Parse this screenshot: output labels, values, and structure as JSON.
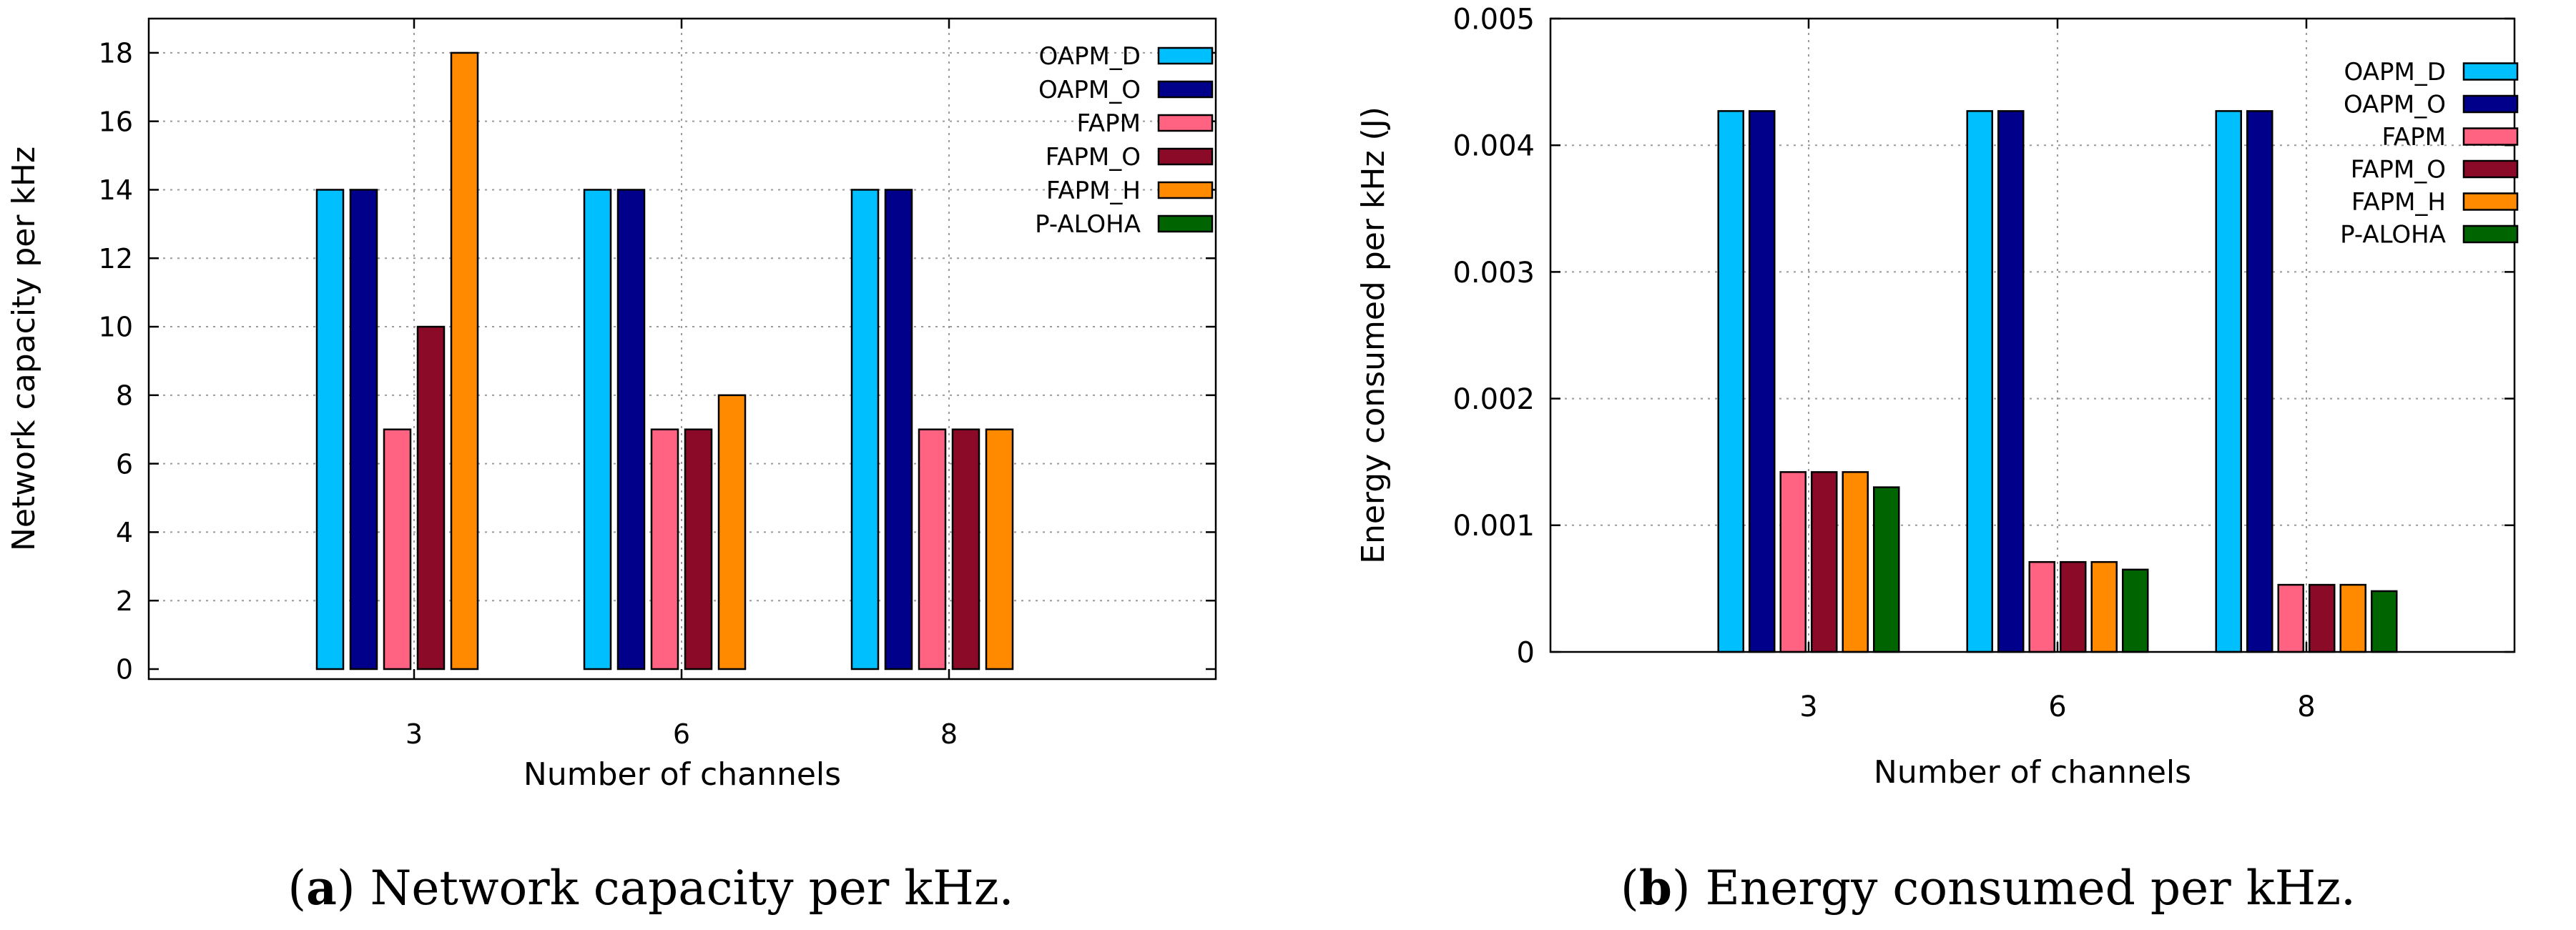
{
  "colors": {
    "OAPM_D": "#00bfff",
    "OAPM_O": "#00008b",
    "FAPM": "#ff6381",
    "FAPM_O": "#8b0a28",
    "FAPM_H": "#ff8a00",
    "P-ALOHA": "#006400"
  },
  "chart_data": [
    {
      "type": "bar",
      "title": "",
      "xlabel": "Number of channels",
      "ylabel": "Network capacity per kHz",
      "categories": [
        "3",
        "6",
        "8"
      ],
      "ylim": [
        0,
        19
      ],
      "yticks": [
        0,
        2,
        4,
        6,
        8,
        10,
        12,
        14,
        16,
        18
      ],
      "ytick_labels": [
        "0",
        "2",
        "4",
        "6",
        "8",
        "10",
        "12",
        "14",
        "16",
        "18"
      ],
      "grid": true,
      "legend_position": "top-right",
      "series": [
        {
          "name": "OAPM_D",
          "values": [
            14,
            14,
            14
          ]
        },
        {
          "name": "OAPM_O",
          "values": [
            14,
            14,
            14
          ]
        },
        {
          "name": "FAPM",
          "values": [
            7,
            7,
            7
          ]
        },
        {
          "name": "FAPM_O",
          "values": [
            10,
            7,
            7
          ]
        },
        {
          "name": "FAPM_H",
          "values": [
            18,
            8,
            7
          ]
        },
        {
          "name": "P-ALOHA",
          "values": [
            0,
            0,
            0
          ]
        }
      ],
      "caption": {
        "label": "a",
        "text": ") Network capacity per kHz."
      }
    },
    {
      "type": "bar",
      "title": "",
      "xlabel": "Number of channels",
      "ylabel": "Energy consumed per kHz (J)",
      "categories": [
        "3",
        "6",
        "8"
      ],
      "ylim": [
        0,
        0.005
      ],
      "yticks": [
        0,
        0.001,
        0.002,
        0.003,
        0.004,
        0.005
      ],
      "ytick_labels": [
        "0",
        "0.001",
        "0.002",
        "0.003",
        "0.004",
        "0.005"
      ],
      "grid": true,
      "legend_position": "top-right",
      "series": [
        {
          "name": "OAPM_D",
          "values": [
            0.00427,
            0.00427,
            0.00427
          ]
        },
        {
          "name": "OAPM_O",
          "values": [
            0.00427,
            0.00427,
            0.00427
          ]
        },
        {
          "name": "FAPM",
          "values": [
            0.00142,
            0.00071,
            0.00053
          ]
        },
        {
          "name": "FAPM_O",
          "values": [
            0.00142,
            0.00071,
            0.00053
          ]
        },
        {
          "name": "FAPM_H",
          "values": [
            0.00142,
            0.00071,
            0.00053
          ]
        },
        {
          "name": "P-ALOHA",
          "values": [
            0.0013,
            0.00065,
            0.00048
          ]
        }
      ],
      "caption": {
        "label": "b",
        "text": ") Energy consumed per kHz."
      }
    }
  ]
}
